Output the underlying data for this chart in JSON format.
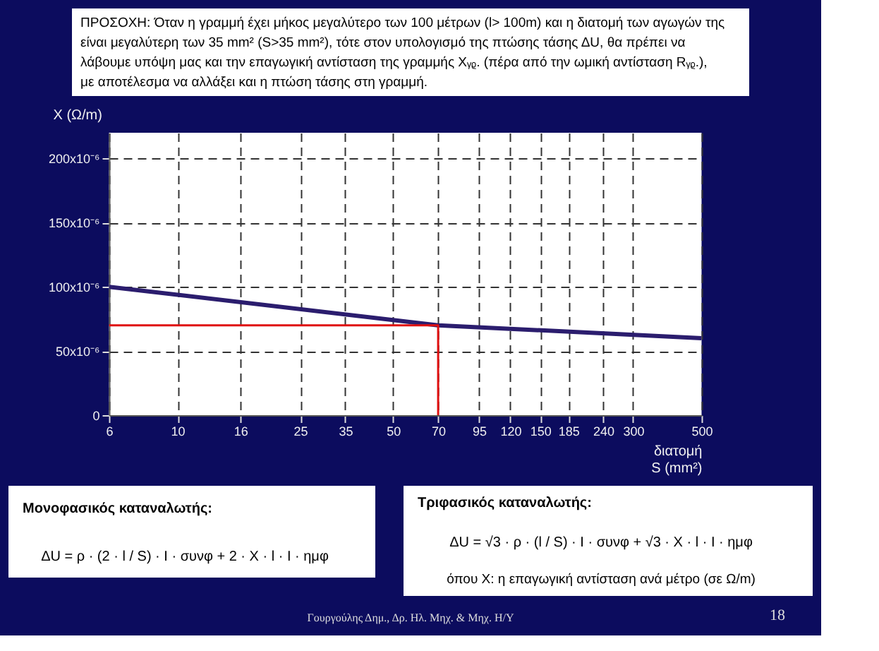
{
  "chart_data": {
    "type": "line",
    "title": "ΠΡΟΣΟΧΗ: Όταν η γραμμή έχει μήκος μεγαλύτερο των 100 μέτρων (l> 100m) και η διατομή των αγωγών της είναι μεγαλύτερη των 35 mm² (S>35 mm²), τότε στον υπολογισμό της πτώσης τάσης ΔU, θα πρέπει να λάβουμε υπόψη μας και την επαγωγική αντίσταση της γραμμής Xᵧᵨ. (πέρα από την ωμική αντίσταση Rᵧᵨ.), με  αποτέλεσμα να αλλάξει και η πτώση τάσης στη γραμμή.",
    "xlabel": "διατομή\nS (mm²)",
    "ylabel": "X  (Ω/m)",
    "log": "x",
    "xlim": [
      6,
      500
    ],
    "xticks": [
      6,
      10,
      16,
      25,
      35,
      50,
      70,
      95,
      120,
      150,
      185,
      240,
      300,
      500
    ],
    "ylim": [
      0,
      0.00022
    ],
    "yticks": [
      {
        "value": 0,
        "label": "0"
      },
      {
        "value": 5e-05,
        "label": "50x10⁻⁶"
      },
      {
        "value": 0.0001,
        "label": "100x10⁻⁶"
      },
      {
        "value": 0.00015,
        "label": "150x10⁻⁶"
      },
      {
        "value": 0.0002,
        "label": "200x10⁻⁶"
      }
    ],
    "grid": true,
    "series": [
      {
        "color": "#2b1d6e",
        "x": [
          6,
          70,
          500
        ],
        "values": [
          0.0001,
          7e-05,
          6e-05
        ]
      },
      {
        "color": "#e01010",
        "x": [
          6,
          70,
          70
        ],
        "values": [
          7e-05,
          7e-05,
          0
        ]
      }
    ],
    "annotations": [
      "Μονοφασικός καταναλωτής:",
      "ΔU = ρ · (2 · l / S) · I · συνφ + 2 · X · l · I · ημφ",
      "Τριφασικός καταναλωτής:",
      "ΔU = √3 · ρ · (l / S) · I · συνφ + √3 · X · l · I · ημφ",
      "όπου  X: η επαγωγική αντίσταση ανά μέτρο (σε Ω/m)",
      "Γουργούλης Δημ., Δρ. Ηλ. Μηχ. & Μηχ. Η/Υ",
      "18"
    ]
  }
}
